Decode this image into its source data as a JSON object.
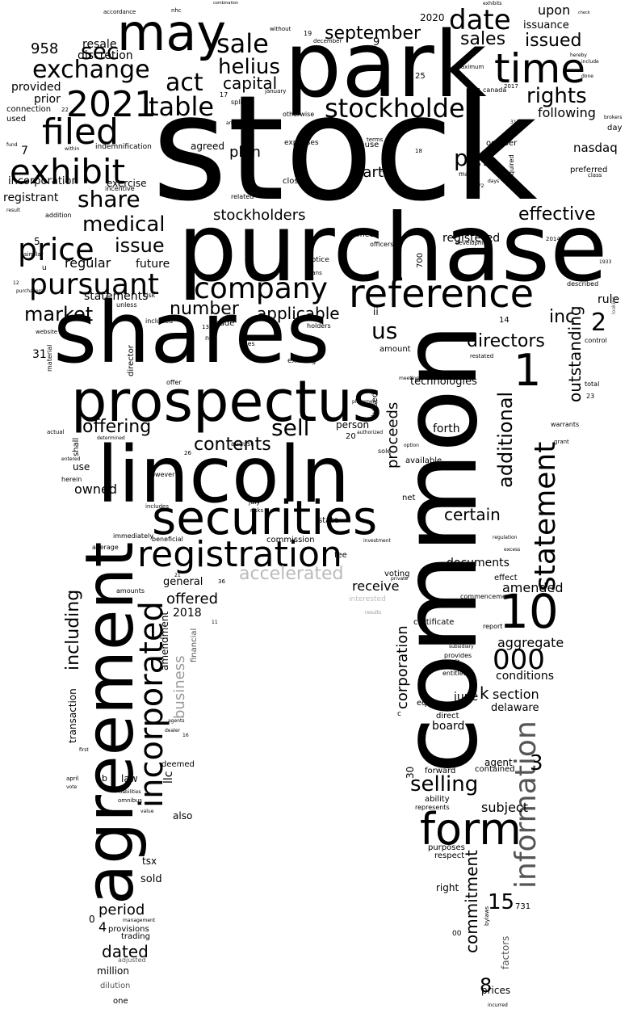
{
  "words": {
    "stock": "stock",
    "common": "common",
    "park": "park",
    "purchase": "purchase",
    "shares": "shares",
    "lincoln": "lincoln",
    "prospectus": "prospectus",
    "agreement": "agreement",
    "securities": "securities",
    "registration": "registration",
    "may": "may",
    "time": "time",
    "reference": "reference",
    "company": "company",
    "form": "form",
    "statement": "statement",
    "information": "information",
    "incorporated": "incorporated",
    "exhibit": "exhibit",
    "filed": "filed",
    "price": "price",
    "pursuant": "pursuant",
    "y2021": "2021",
    "exchange": "exchange",
    "date": "date",
    "sale": "sale",
    "sec": "sec",
    "stockholder": "stockholder",
    "rights": "rights",
    "table": "table",
    "act": "act",
    "helius": "helius",
    "capital": "capital",
    "september": "september",
    "sales": "sales",
    "issued": "issued",
    "issuance": "issuance",
    "upon": "upon",
    "n10": "10",
    "n000": "000",
    "n1": "1",
    "n2": "2",
    "n3": "3",
    "n8": "8",
    "n15": "15",
    "n958": "958",
    "medical": "medical",
    "issue": "issue",
    "share": "share",
    "effective": "effective",
    "per": "per",
    "nasdaq": "nasdaq",
    "stockholders": "stockholders",
    "registrant": "registrant",
    "incorporation": "incorporation",
    "market": "market",
    "number": "number",
    "applicable": "applicable",
    "offering": "offering",
    "sell": "sell",
    "contents": "contents",
    "directors": "directors",
    "us": "us",
    "inc": "inc",
    "additional": "additional",
    "outstanding": "outstanding",
    "accelerated": "accelerated",
    "offered": "offered",
    "including": "including",
    "business": "business",
    "selling": "selling",
    "commitment": "commitment",
    "subject": "subject",
    "period": "period",
    "dated": "dated",
    "certain": "certain",
    "amended": "amended",
    "aggregate": "aggregate",
    "conditions": "conditions",
    "section": "section",
    "corporation": "corporation",
    "proceeds": "proceeds",
    "documents": "documents",
    "following": "following",
    "owned": "owned",
    "regular": "regular",
    "future": "future",
    "statements": "statements",
    "plan": "plan",
    "part": "part",
    "resale": "resale",
    "discretion": "discretion",
    "provided": "provided",
    "prior": "prior",
    "connection": "connection",
    "used": "used",
    "registered": "registered",
    "rule": "rule",
    "technologies": "technologies",
    "forth": "forth",
    "board": "board",
    "delaware": "delaware",
    "june": "june",
    "k": "k",
    "receive": "receive",
    "general": "general",
    "y2018": "2018",
    "amendment": "amendment",
    "financial": "financial",
    "transaction": "transaction",
    "llc": "llc",
    "deemed": "deemed",
    "law": "law",
    "also": "also",
    "tsx": "tsx",
    "sold": "sold",
    "provisions": "provisions",
    "trading": "trading",
    "million": "million",
    "dilution": "dilution",
    "one": "one",
    "adjusted": "adjusted",
    "prices": "prices",
    "factors": "factors",
    "right": "right",
    "purposes": "purposes",
    "respect": "respect",
    "ability": "ability",
    "represents": "represents",
    "forward": "forward",
    "agent": "agent",
    "contained": "contained",
    "direct": "direct",
    "equity": "equity",
    "entitled": "entitled",
    "provides": "provides",
    "benefit": "benefit",
    "subsidiary": "subsidiary",
    "certificate": "certificate",
    "report": "report",
    "commencement": "commencement",
    "effect": "effect",
    "excess": "excess",
    "regulation": "regulation",
    "fee": "fee",
    "state": "state",
    "commission": "commission",
    "immediately": "immediately",
    "beneficial": "beneficial",
    "amounts": "amounts",
    "average": "average",
    "includes": "includes",
    "use": "use",
    "shall": "shall",
    "herein": "herein",
    "entered": "entered",
    "however": "however",
    "determined": "determined",
    "actual": "actual",
    "warrants": "warrants",
    "grant": "grant",
    "total": "total",
    "control": "control",
    "restated": "restated",
    "described": "described",
    "looking": "looking",
    "y2014": "2014",
    "y2017": "2017",
    "y2020": "2020",
    "y1933": "1933",
    "october": "october",
    "required": "required",
    "preferred": "preferred",
    "class": "class",
    "day": "day",
    "canada": "canada",
    "maximum": "maximum",
    "march": "march",
    "days": "days",
    "development": "development",
    "cause": "cause",
    "expenses": "expenses",
    "cap": "cap",
    "closing": "closing",
    "terms": "terms",
    "otherwise": "otherwise",
    "january": "january",
    "december": "december",
    "without": "without",
    "annual": "annual",
    "split": "split",
    "agreed": "agreed",
    "indemnification": "indemnification",
    "exercise": "exercise",
    "incentive": "incentive",
    "related": "related",
    "within": "within",
    "officer": "officer",
    "officers": "officers",
    "notice": "notice",
    "plans": "plans",
    "made": "made",
    "holders": "holders",
    "non": "non",
    "rules": "rules",
    "existing": "existing",
    "amount": "amount",
    "based": "based",
    "person": "person",
    "authorized": "authorized",
    "available": "available",
    "net": "net",
    "sole": "sole",
    "option": "option",
    "meeting": "meeting",
    "placement": "placement",
    "july": "july",
    "risks": "risks",
    "august": "august",
    "voting": "voting",
    "interested": "interested",
    "results": "results",
    "investment": "investment",
    "private": "private",
    "website": "website",
    "material": "material",
    "ii": "ii",
    "director": "director",
    "offer": "offer",
    "included": "included",
    "unless": "unless",
    "risk": "risk",
    "purchasers": "purchasers",
    "similar": "similar",
    "addition": "addition",
    "result": "result",
    "fund": "fund",
    "u": "u",
    "c": "c",
    "b": "b",
    "april": "april",
    "vote": "vote",
    "liabilities": "liabilities",
    "omnibus": "omnibus",
    "value": "value",
    "dealer": "dealer",
    "agents": "agents",
    "first": "first",
    "management": "management",
    "incurred": "incurred",
    "bylaws": "bylaws",
    "brokers": "brokers",
    "hereby": "hereby",
    "include": "include",
    "done": "done",
    "exhibits": "exhibits",
    "combination": "combination",
    "accordance": "accordance",
    "nhc": "nhc",
    "check": "check",
    "n7": "7",
    "n5": "5",
    "n9": "9",
    "n25": "25",
    "n22": "22",
    "n17": "17",
    "n19": "19",
    "n14": "14",
    "n13": "13",
    "n18": "18",
    "n20": "20",
    "n23": "23",
    "n26": "26",
    "n21": "21",
    "n16": "16",
    "n36": "36",
    "n11": "11",
    "n12": "12",
    "n30": "30",
    "n31": "31",
    "n0": "0",
    "n4": "4",
    "n00": "00",
    "n700": "700",
    "n731": "731",
    "n772": "772",
    "n317": "317",
    "n29": "29"
  }
}
